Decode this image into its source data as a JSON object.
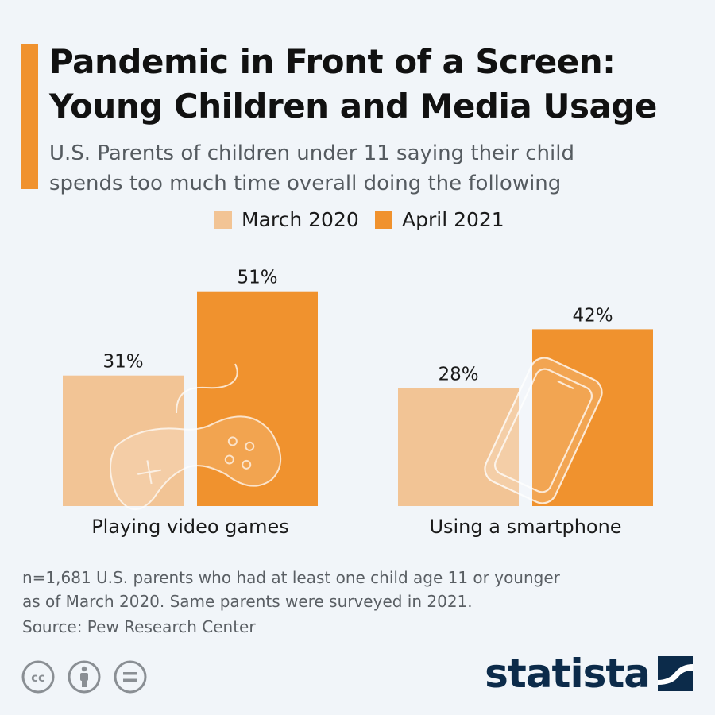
{
  "header": {
    "title_line1": "Pandemic in Front of a Screen:",
    "title_line2": "Young Children and Media Usage",
    "subtitle_line1": "U.S. Parents of children under 11 saying their child",
    "subtitle_line2": "spends too much time overall doing the following",
    "accent_color": "#f0922e"
  },
  "legend": {
    "series1": "March 2020",
    "series2": "April 2021"
  },
  "chart_data": {
    "type": "bar",
    "title": "Pandemic in Front of a Screen: Young Children and Media Usage",
    "xlabel": "",
    "ylabel": "",
    "unit": "%",
    "ylim": [
      0,
      60
    ],
    "grid": false,
    "legend_position": "top-center",
    "categories": [
      "Playing video games",
      "Using a smartphone"
    ],
    "series": [
      {
        "name": "March 2020",
        "values": [
          31,
          28
        ],
        "color": "#f2c495"
      },
      {
        "name": "April 2021",
        "values": [
          51,
          42
        ],
        "color": "#f0922e"
      }
    ],
    "data_labels": [
      [
        "31%",
        "28%"
      ],
      [
        "51%",
        "42%"
      ]
    ]
  },
  "footnote": {
    "line1": "n=1,681 U.S. parents who had at least one child age 11 or younger",
    "line2": "as of March 2020. Same parents were surveyed in 2021.",
    "source": "Source: Pew Research Center"
  },
  "branding": {
    "name": "statista",
    "color": "#0c2b4a"
  },
  "license_icons": [
    "creative-commons-icon",
    "attribution-icon",
    "no-derivatives-icon"
  ]
}
